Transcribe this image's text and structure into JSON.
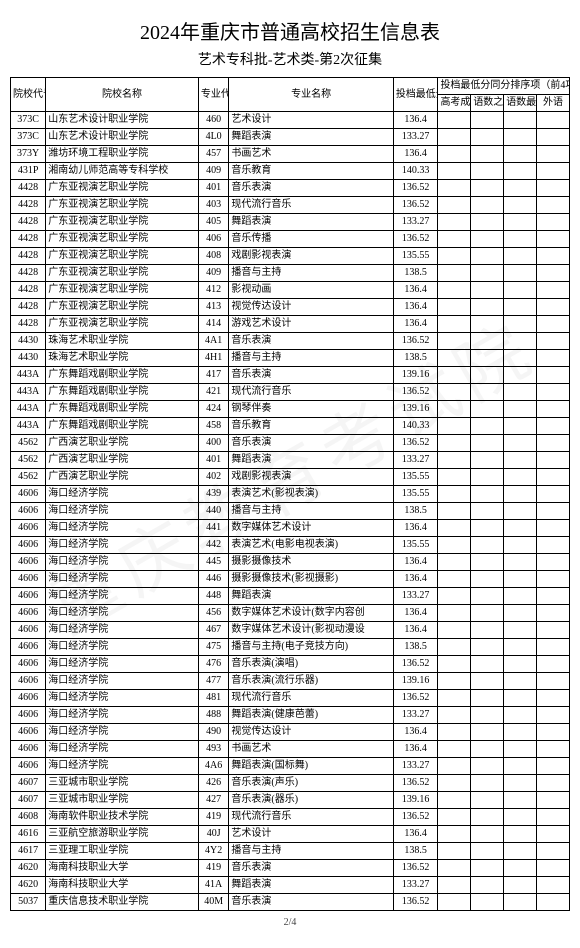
{
  "title": "2024年重庆市普通高校招生信息表",
  "subtitle": "艺术专科批-艺术类-第2次征集",
  "watermark": "重庆教育考试院",
  "pagenum": "2/4",
  "header": {
    "code": "院校代号",
    "school": "院校名称",
    "major_code": "专业代号",
    "major": "专业名称",
    "score": "投档最低分",
    "sub_group": "投档最低分同分排序项（前4项）",
    "sub1": "高考成绩",
    "sub2": "语数之和",
    "sub3": "语数最高",
    "sub4": "外语"
  },
  "rows": [
    {
      "code": "373C",
      "school": "山东艺术设计职业学院",
      "mcode": "460",
      "major": "艺术设计",
      "score": "136.4",
      "s1": "",
      "s2": "",
      "s3": "",
      "s4": ""
    },
    {
      "code": "373C",
      "school": "山东艺术设计职业学院",
      "mcode": "4L0",
      "major": "舞蹈表演",
      "score": "133.27",
      "s1": "",
      "s2": "",
      "s3": "",
      "s4": ""
    },
    {
      "code": "373Y",
      "school": "潍坊环境工程职业学院",
      "mcode": "457",
      "major": "书画艺术",
      "score": "136.4",
      "s1": "",
      "s2": "",
      "s3": "",
      "s4": ""
    },
    {
      "code": "431P",
      "school": "湘南幼儿师范高等专科学校",
      "mcode": "409",
      "major": "音乐教育",
      "score": "140.33",
      "s1": "",
      "s2": "",
      "s3": "",
      "s4": ""
    },
    {
      "code": "4428",
      "school": "广东亚视演艺职业学院",
      "mcode": "401",
      "major": "音乐表演",
      "score": "136.52",
      "s1": "",
      "s2": "",
      "s3": "",
      "s4": ""
    },
    {
      "code": "4428",
      "school": "广东亚视演艺职业学院",
      "mcode": "403",
      "major": "现代流行音乐",
      "score": "136.52",
      "s1": "",
      "s2": "",
      "s3": "",
      "s4": ""
    },
    {
      "code": "4428",
      "school": "广东亚视演艺职业学院",
      "mcode": "405",
      "major": "舞蹈表演",
      "score": "133.27",
      "s1": "",
      "s2": "",
      "s3": "",
      "s4": ""
    },
    {
      "code": "4428",
      "school": "广东亚视演艺职业学院",
      "mcode": "406",
      "major": "音乐传播",
      "score": "136.52",
      "s1": "",
      "s2": "",
      "s3": "",
      "s4": ""
    },
    {
      "code": "4428",
      "school": "广东亚视演艺职业学院",
      "mcode": "408",
      "major": "戏剧影视表演",
      "score": "135.55",
      "s1": "",
      "s2": "",
      "s3": "",
      "s4": ""
    },
    {
      "code": "4428",
      "school": "广东亚视演艺职业学院",
      "mcode": "409",
      "major": "播音与主持",
      "score": "138.5",
      "s1": "",
      "s2": "",
      "s3": "",
      "s4": ""
    },
    {
      "code": "4428",
      "school": "广东亚视演艺职业学院",
      "mcode": "412",
      "major": "影视动画",
      "score": "136.4",
      "s1": "",
      "s2": "",
      "s3": "",
      "s4": ""
    },
    {
      "code": "4428",
      "school": "广东亚视演艺职业学院",
      "mcode": "413",
      "major": "视觉传达设计",
      "score": "136.4",
      "s1": "",
      "s2": "",
      "s3": "",
      "s4": ""
    },
    {
      "code": "4428",
      "school": "广东亚视演艺职业学院",
      "mcode": "414",
      "major": "游戏艺术设计",
      "score": "136.4",
      "s1": "",
      "s2": "",
      "s3": "",
      "s4": ""
    },
    {
      "code": "4430",
      "school": "珠海艺术职业学院",
      "mcode": "4A1",
      "major": "音乐表演",
      "score": "136.52",
      "s1": "",
      "s2": "",
      "s3": "",
      "s4": ""
    },
    {
      "code": "4430",
      "school": "珠海艺术职业学院",
      "mcode": "4H1",
      "major": "播音与主持",
      "score": "138.5",
      "s1": "",
      "s2": "",
      "s3": "",
      "s4": ""
    },
    {
      "code": "443A",
      "school": "广东舞蹈戏剧职业学院",
      "mcode": "417",
      "major": "音乐表演",
      "score": "139.16",
      "s1": "",
      "s2": "",
      "s3": "",
      "s4": ""
    },
    {
      "code": "443A",
      "school": "广东舞蹈戏剧职业学院",
      "mcode": "421",
      "major": "现代流行音乐",
      "score": "136.52",
      "s1": "",
      "s2": "",
      "s3": "",
      "s4": ""
    },
    {
      "code": "443A",
      "school": "广东舞蹈戏剧职业学院",
      "mcode": "424",
      "major": "钢琴伴奏",
      "score": "139.16",
      "s1": "",
      "s2": "",
      "s3": "",
      "s4": ""
    },
    {
      "code": "443A",
      "school": "广东舞蹈戏剧职业学院",
      "mcode": "458",
      "major": "音乐教育",
      "score": "140.33",
      "s1": "",
      "s2": "",
      "s3": "",
      "s4": ""
    },
    {
      "code": "4562",
      "school": "广西演艺职业学院",
      "mcode": "400",
      "major": "音乐表演",
      "score": "136.52",
      "s1": "",
      "s2": "",
      "s3": "",
      "s4": ""
    },
    {
      "code": "4562",
      "school": "广西演艺职业学院",
      "mcode": "401",
      "major": "舞蹈表演",
      "score": "133.27",
      "s1": "",
      "s2": "",
      "s3": "",
      "s4": ""
    },
    {
      "code": "4562",
      "school": "广西演艺职业学院",
      "mcode": "402",
      "major": "戏剧影视表演",
      "score": "135.55",
      "s1": "",
      "s2": "",
      "s3": "",
      "s4": ""
    },
    {
      "code": "4606",
      "school": "海口经济学院",
      "mcode": "439",
      "major": "表演艺术(影视表演)",
      "score": "135.55",
      "s1": "",
      "s2": "",
      "s3": "",
      "s4": ""
    },
    {
      "code": "4606",
      "school": "海口经济学院",
      "mcode": "440",
      "major": "播音与主持",
      "score": "138.5",
      "s1": "",
      "s2": "",
      "s3": "",
      "s4": ""
    },
    {
      "code": "4606",
      "school": "海口经济学院",
      "mcode": "441",
      "major": "数字媒体艺术设计",
      "score": "136.4",
      "s1": "",
      "s2": "",
      "s3": "",
      "s4": ""
    },
    {
      "code": "4606",
      "school": "海口经济学院",
      "mcode": "442",
      "major": "表演艺术(电影电视表演)",
      "score": "135.55",
      "s1": "",
      "s2": "",
      "s3": "",
      "s4": ""
    },
    {
      "code": "4606",
      "school": "海口经济学院",
      "mcode": "445",
      "major": "摄影摄像技术",
      "score": "136.4",
      "s1": "",
      "s2": "",
      "s3": "",
      "s4": ""
    },
    {
      "code": "4606",
      "school": "海口经济学院",
      "mcode": "446",
      "major": "摄影摄像技术(影视摄影)",
      "score": "136.4",
      "s1": "",
      "s2": "",
      "s3": "",
      "s4": ""
    },
    {
      "code": "4606",
      "school": "海口经济学院",
      "mcode": "448",
      "major": "舞蹈表演",
      "score": "133.27",
      "s1": "",
      "s2": "",
      "s3": "",
      "s4": ""
    },
    {
      "code": "4606",
      "school": "海口经济学院",
      "mcode": "456",
      "major": "数字媒体艺术设计(数字内容创",
      "score": "136.4",
      "s1": "",
      "s2": "",
      "s3": "",
      "s4": ""
    },
    {
      "code": "4606",
      "school": "海口经济学院",
      "mcode": "467",
      "major": "数字媒体艺术设计(影视动漫设",
      "score": "136.4",
      "s1": "",
      "s2": "",
      "s3": "",
      "s4": ""
    },
    {
      "code": "4606",
      "school": "海口经济学院",
      "mcode": "475",
      "major": "播音与主持(电子竞技方向)",
      "score": "138.5",
      "s1": "",
      "s2": "",
      "s3": "",
      "s4": ""
    },
    {
      "code": "4606",
      "school": "海口经济学院",
      "mcode": "476",
      "major": "音乐表演(演唱)",
      "score": "136.52",
      "s1": "",
      "s2": "",
      "s3": "",
      "s4": ""
    },
    {
      "code": "4606",
      "school": "海口经济学院",
      "mcode": "477",
      "major": "音乐表演(流行乐器)",
      "score": "139.16",
      "s1": "",
      "s2": "",
      "s3": "",
      "s4": ""
    },
    {
      "code": "4606",
      "school": "海口经济学院",
      "mcode": "481",
      "major": "现代流行音乐",
      "score": "136.52",
      "s1": "",
      "s2": "",
      "s3": "",
      "s4": ""
    },
    {
      "code": "4606",
      "school": "海口经济学院",
      "mcode": "488",
      "major": "舞蹈表演(健康芭蕾)",
      "score": "133.27",
      "s1": "",
      "s2": "",
      "s3": "",
      "s4": ""
    },
    {
      "code": "4606",
      "school": "海口经济学院",
      "mcode": "490",
      "major": "视觉传达设计",
      "score": "136.4",
      "s1": "",
      "s2": "",
      "s3": "",
      "s4": ""
    },
    {
      "code": "4606",
      "school": "海口经济学院",
      "mcode": "493",
      "major": "书画艺术",
      "score": "136.4",
      "s1": "",
      "s2": "",
      "s3": "",
      "s4": ""
    },
    {
      "code": "4606",
      "school": "海口经济学院",
      "mcode": "4A6",
      "major": "舞蹈表演(国标舞)",
      "score": "133.27",
      "s1": "",
      "s2": "",
      "s3": "",
      "s4": ""
    },
    {
      "code": "4607",
      "school": "三亚城市职业学院",
      "mcode": "426",
      "major": "音乐表演(声乐)",
      "score": "136.52",
      "s1": "",
      "s2": "",
      "s3": "",
      "s4": ""
    },
    {
      "code": "4607",
      "school": "三亚城市职业学院",
      "mcode": "427",
      "major": "音乐表演(器乐)",
      "score": "139.16",
      "s1": "",
      "s2": "",
      "s3": "",
      "s4": ""
    },
    {
      "code": "4608",
      "school": "海南软件职业技术学院",
      "mcode": "419",
      "major": "现代流行音乐",
      "score": "136.52",
      "s1": "",
      "s2": "",
      "s3": "",
      "s4": ""
    },
    {
      "code": "4616",
      "school": "三亚航空旅游职业学院",
      "mcode": "40J",
      "major": "艺术设计",
      "score": "136.4",
      "s1": "",
      "s2": "",
      "s3": "",
      "s4": ""
    },
    {
      "code": "4617",
      "school": "三亚理工职业学院",
      "mcode": "4Y2",
      "major": "播音与主持",
      "score": "138.5",
      "s1": "",
      "s2": "",
      "s3": "",
      "s4": ""
    },
    {
      "code": "4620",
      "school": "海南科技职业大学",
      "mcode": "419",
      "major": "音乐表演",
      "score": "136.52",
      "s1": "",
      "s2": "",
      "s3": "",
      "s4": ""
    },
    {
      "code": "4620",
      "school": "海南科技职业大学",
      "mcode": "41A",
      "major": "舞蹈表演",
      "score": "133.27",
      "s1": "",
      "s2": "",
      "s3": "",
      "s4": ""
    },
    {
      "code": "5037",
      "school": "重庆信息技术职业学院",
      "mcode": "40M",
      "major": "音乐表演",
      "score": "136.52",
      "s1": "",
      "s2": "",
      "s3": "",
      "s4": ""
    }
  ]
}
